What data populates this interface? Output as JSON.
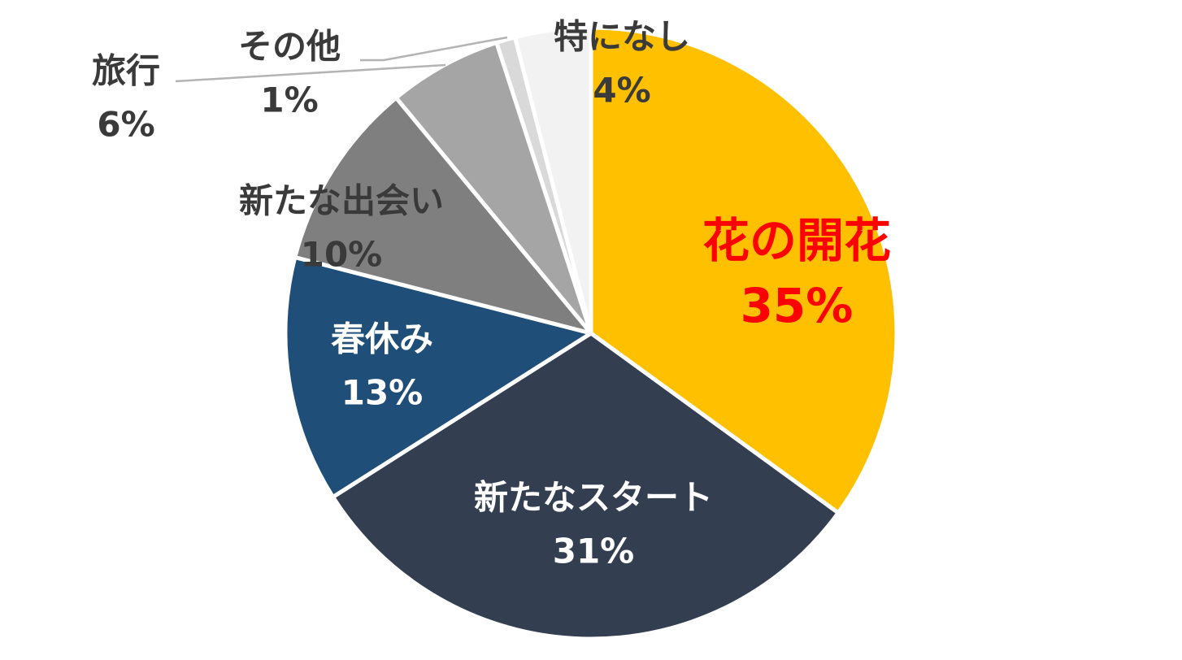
{
  "chart_data": {
    "type": "pie",
    "categories": [
      "花の開花",
      "新たなスタート",
      "春休み",
      "新たな出会い",
      "旅行",
      "その他",
      "特になし"
    ],
    "values": [
      35,
      31,
      13,
      10,
      6,
      1,
      4
    ],
    "value_labels": [
      "35%",
      "31%",
      "13%",
      "10%",
      "6%",
      "1%",
      "4%"
    ],
    "slice_colors": [
      "#FFC000",
      "#333F50",
      "#1F4E79",
      "#7F7F7F",
      "#A5A5A5",
      "#D9D9D9",
      "#F2F2F2"
    ],
    "label_colors": [
      "#FF0000",
      "#FFFFFF",
      "#FFFFFF",
      "#3A3A3A",
      "#3A3A3A",
      "#3A3A3A",
      "#3A3A3A"
    ],
    "start_angle_deg": 0,
    "direction": "clockwise",
    "title": "",
    "legend": "none",
    "data_labels": "category and percentage"
  }
}
